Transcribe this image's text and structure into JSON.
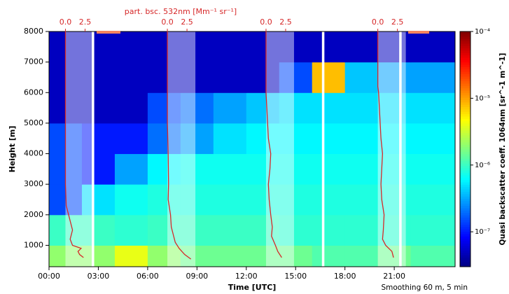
{
  "chart_data": {
    "type": "lidar-quicklook",
    "xlabel": "Time [UTC]",
    "ylabel": "Height [m]",
    "top_label": "part. bsc. 532nm [Mm⁻¹ sr⁻¹]",
    "colorbar_label": "Quasi backscatter coeff. 1064nm [sr^-1 m^-1]",
    "note": "Smoothing 60 m, 5 min",
    "xlim": [
      0,
      24.7
    ],
    "xticks": [
      {
        "value": 0,
        "label": "00:00"
      },
      {
        "value": 3,
        "label": "03:00"
      },
      {
        "value": 6,
        "label": "06:00"
      },
      {
        "value": 9,
        "label": "09:00"
      },
      {
        "value": 12,
        "label": "12:00"
      },
      {
        "value": 15,
        "label": "15:00"
      },
      {
        "value": 18,
        "label": "18:00"
      },
      {
        "value": 21,
        "label": "21:00"
      }
    ],
    "ylim": [
      300,
      8000
    ],
    "yticks": [
      1000,
      2000,
      3000,
      4000,
      5000,
      6000,
      7000,
      8000
    ],
    "clim": [
      3e-08,
      0.0001
    ],
    "cticks": [
      {
        "value": 0.0001,
        "label": "10⁻⁴"
      },
      {
        "value": 1e-05,
        "label": "10⁻⁵"
      },
      {
        "value": 1e-06,
        "label": "10⁻⁶"
      },
      {
        "value": 1e-07,
        "label": "10⁻⁷"
      }
    ],
    "log_color": true,
    "colormap": "jet",
    "heatmap": {
      "x_bins": [
        0,
        2,
        4,
        6,
        8,
        10,
        12,
        14,
        16,
        18,
        20,
        22,
        24.7
      ],
      "y_bins": [
        300,
        1000,
        2000,
        3000,
        4000,
        5000,
        6000,
        7000,
        8000
      ],
      "values": [
        [
          2e-06,
          2e-06,
          4e-06,
          2e-06,
          1.5e-06,
          1.5e-06,
          1.5e-06,
          1.5e-06,
          1.2e-06,
          1.2e-06,
          1.5e-06,
          1.2e-06
        ],
        [
          1e-06,
          1e-06,
          9e-07,
          1e-06,
          1e-06,
          1e-06,
          1e-06,
          9e-07,
          9e-07,
          9e-07,
          9e-07,
          9e-07
        ],
        [
          1.5e-07,
          5e-07,
          7e-07,
          8e-07,
          8e-07,
          8e-07,
          8e-07,
          8e-07,
          8e-07,
          8e-07,
          8e-07,
          8e-07
        ],
        [
          1.5e-07,
          1e-07,
          3e-07,
          6e-07,
          7e-07,
          7e-07,
          7e-07,
          7e-07,
          7e-07,
          7e-07,
          7e-07,
          7e-07
        ],
        [
          1.5e-07,
          1e-07,
          1e-07,
          2e-07,
          3e-07,
          5e-07,
          6e-07,
          6e-07,
          6e-07,
          6e-07,
          6e-07,
          6e-07
        ],
        [
          5e-08,
          5e-08,
          5e-08,
          1.5e-07,
          2e-07,
          3e-07,
          4e-07,
          5e-07,
          5e-07,
          5e-07,
          5e-07,
          5e-07
        ],
        [
          5e-08,
          5e-08,
          5e-08,
          5e-08,
          5e-08,
          5e-08,
          5e-08,
          1.5e-07,
          8e-06,
          4e-07,
          3e-07,
          3e-07
        ],
        [
          5e-08,
          5e-08,
          5e-08,
          5e-08,
          5e-08,
          5e-08,
          5e-08,
          5e-08,
          5e-08,
          5e-08,
          5e-08,
          5e-08
        ]
      ]
    },
    "profile_ticks": [
      {
        "value": 0,
        "label": "0.0"
      },
      {
        "value": 2.5,
        "label": "2.5"
      }
    ],
    "profiles": [
      {
        "time": 1.0,
        "color": "#d62728",
        "heights": [
          600,
          700,
          800,
          900,
          1000,
          1200,
          1500,
          2000,
          2300,
          3000,
          5000,
          8000
        ],
        "values": [
          2.3,
          1.8,
          1.6,
          2.0,
          0.9,
          0.6,
          0.9,
          0.4,
          0.1,
          0,
          0,
          0
        ]
      },
      {
        "time": 7.2,
        "color": "#d62728",
        "heights": [
          550,
          700,
          900,
          1100,
          1300,
          1600,
          2000,
          2500,
          3000,
          4000,
          5000,
          8000
        ],
        "values": [
          3.0,
          2.2,
          1.5,
          1.0,
          0.8,
          0.5,
          0.4,
          0.1,
          0.15,
          0.1,
          0,
          0
        ]
      },
      {
        "time": 13.2,
        "color": "#d62728",
        "heights": [
          600,
          800,
          1000,
          1300,
          1600,
          2000,
          2500,
          3000,
          3500,
          4000,
          4500,
          5000,
          5500,
          6000,
          8000
        ],
        "values": [
          2.0,
          1.5,
          1.2,
          0.7,
          0.8,
          0.6,
          0.4,
          0.3,
          0.5,
          0.6,
          0.3,
          0.2,
          0.1,
          0,
          0
        ]
      },
      {
        "time": 20.0,
        "color": "#d62728",
        "heights": [
          600,
          800,
          1000,
          1200,
          1500,
          2000,
          2500,
          3000,
          3500,
          4000,
          4500,
          5000,
          5500,
          6000,
          6200,
          8000
        ],
        "values": [
          2.0,
          1.8,
          1.0,
          0.6,
          0.7,
          0.8,
          0.5,
          0.4,
          0.5,
          0.6,
          0.4,
          0.3,
          0.2,
          0.1,
          0,
          0
        ]
      }
    ]
  }
}
